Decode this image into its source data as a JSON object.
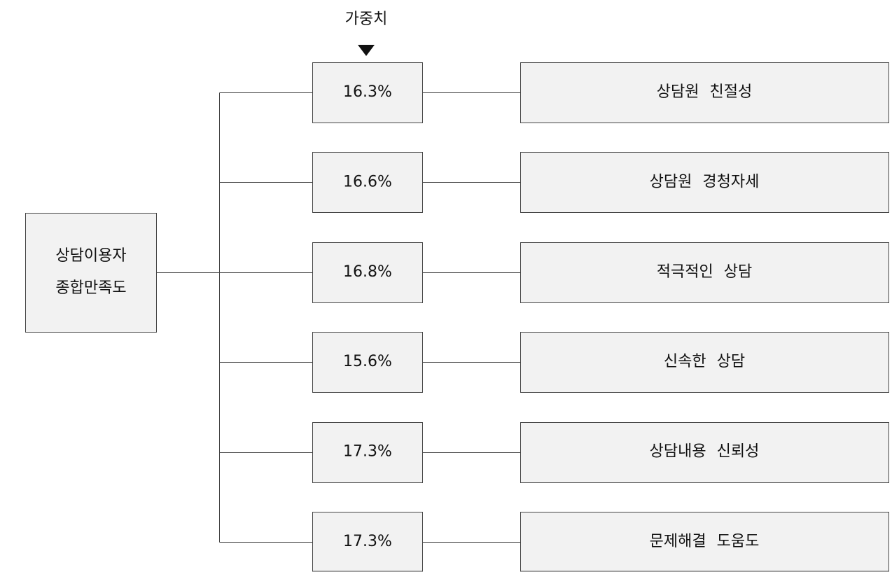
{
  "header": {
    "title": "가중치"
  },
  "root": {
    "lines": [
      "상담이용자",
      "종합만족도"
    ]
  },
  "items": [
    {
      "weight": "16.3%",
      "label": "상담원 친절성"
    },
    {
      "weight": "16.6%",
      "label": "상담원 경청자세"
    },
    {
      "weight": "16.8%",
      "label": "적극적인 상담"
    },
    {
      "weight": "15.6%",
      "label": "신속한 상담"
    },
    {
      "weight": "17.3%",
      "label": "상담내용 신뢰성"
    },
    {
      "weight": "17.3%",
      "label": "문제해결 도움도"
    }
  ]
}
